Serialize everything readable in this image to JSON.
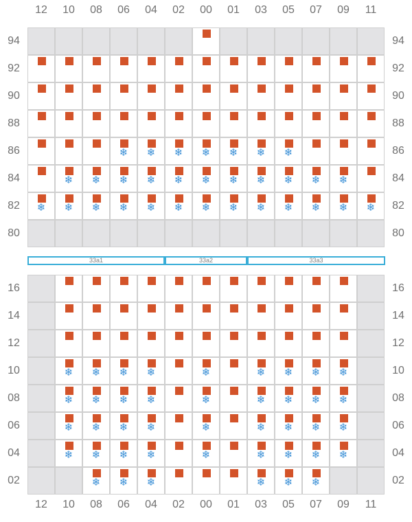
{
  "columns": [
    "12",
    "10",
    "08",
    "06",
    "04",
    "02",
    "00",
    "01",
    "03",
    "05",
    "07",
    "09",
    "11"
  ],
  "reefer_icon": "snowflake-icon",
  "colors": {
    "occupied": "#d35329",
    "reefer": "#3a8fd6",
    "unavailable": "#e3e3e5",
    "hatch": "#3aaed8"
  },
  "deck": {
    "tiers": [
      {
        "label": "94",
        "slots": [
          "X",
          "X",
          "X",
          "X",
          "X",
          "X",
          "C",
          "X",
          "X",
          "X",
          "X",
          "X",
          "X"
        ]
      },
      {
        "label": "92",
        "slots": [
          "C",
          "C",
          "C",
          "C",
          "C",
          "C",
          "C",
          "C",
          "C",
          "C",
          "C",
          "C",
          "C"
        ]
      },
      {
        "label": "90",
        "slots": [
          "C",
          "C",
          "C",
          "C",
          "C",
          "C",
          "C",
          "C",
          "C",
          "C",
          "C",
          "C",
          "C"
        ]
      },
      {
        "label": "88",
        "slots": [
          "C",
          "C",
          "C",
          "C",
          "C",
          "C",
          "C",
          "C",
          "C",
          "C",
          "C",
          "C",
          "C"
        ]
      },
      {
        "label": "86",
        "slots": [
          "C",
          "C",
          "C",
          "R",
          "R",
          "R",
          "R",
          "R",
          "R",
          "R",
          "C",
          "C",
          "C"
        ]
      },
      {
        "label": "84",
        "slots": [
          "C",
          "R",
          "R",
          "R",
          "R",
          "R",
          "R",
          "R",
          "R",
          "R",
          "R",
          "R",
          "C"
        ]
      },
      {
        "label": "82",
        "slots": [
          "R",
          "R",
          "R",
          "R",
          "R",
          "R",
          "R",
          "R",
          "R",
          "R",
          "R",
          "R",
          "R"
        ]
      },
      {
        "label": "80",
        "slots": [
          "X",
          "X",
          "X",
          "X",
          "X",
          "X",
          "X",
          "X",
          "X",
          "X",
          "X",
          "X",
          "X"
        ]
      }
    ]
  },
  "hatch_covers": [
    "33a1",
    "33a2",
    "33a3"
  ],
  "hold": {
    "tiers": [
      {
        "label": "16",
        "slots": [
          "X",
          "C",
          "C",
          "C",
          "C",
          "C",
          "C",
          "C",
          "C",
          "C",
          "C",
          "C",
          "X"
        ]
      },
      {
        "label": "14",
        "slots": [
          "X",
          "C",
          "C",
          "C",
          "C",
          "C",
          "C",
          "C",
          "C",
          "C",
          "C",
          "C",
          "X"
        ]
      },
      {
        "label": "12",
        "slots": [
          "X",
          "C",
          "C",
          "C",
          "C",
          "C",
          "C",
          "C",
          "C",
          "C",
          "C",
          "C",
          "X"
        ]
      },
      {
        "label": "10",
        "slots": [
          "X",
          "R",
          "R",
          "R",
          "R",
          "C",
          "R",
          "C",
          "R",
          "R",
          "R",
          "R",
          "X"
        ]
      },
      {
        "label": "08",
        "slots": [
          "X",
          "R",
          "R",
          "R",
          "R",
          "C",
          "R",
          "C",
          "R",
          "R",
          "R",
          "R",
          "X"
        ]
      },
      {
        "label": "06",
        "slots": [
          "X",
          "R",
          "R",
          "R",
          "R",
          "C",
          "R",
          "C",
          "R",
          "R",
          "R",
          "R",
          "X"
        ]
      },
      {
        "label": "04",
        "slots": [
          "X",
          "R",
          "R",
          "R",
          "R",
          "C",
          "R",
          "C",
          "R",
          "R",
          "R",
          "R",
          "X"
        ]
      },
      {
        "label": "02",
        "slots": [
          "X",
          "X",
          "R",
          "R",
          "R",
          "C",
          "C",
          "C",
          "R",
          "R",
          "R",
          "X",
          "X"
        ]
      }
    ]
  }
}
